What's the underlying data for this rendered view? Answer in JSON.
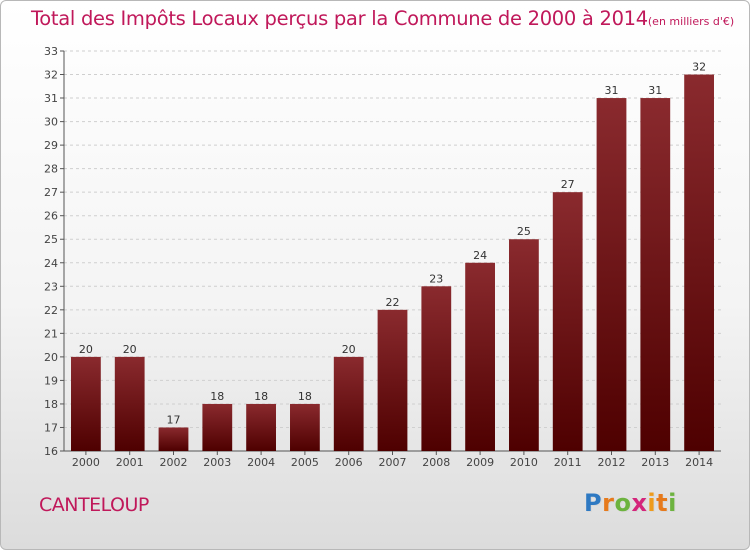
{
  "title": "Total des Impôts Locaux perçus par la Commune de 2000 à 2014",
  "title_unit": "(en milliers d'€)",
  "commune": "CANTELOUP",
  "logo": {
    "text": "Proxiti",
    "colors": [
      "#2e79c2",
      "#e67a1c",
      "#6db33f",
      "#d4257b",
      "#ee9b1c",
      "#e67a1c",
      "#6db33f"
    ]
  },
  "chart_data": {
    "type": "bar",
    "categories": [
      "2000",
      "2001",
      "2002",
      "2003",
      "2004",
      "2005",
      "2006",
      "2007",
      "2008",
      "2009",
      "2010",
      "2011",
      "2012",
      "2013",
      "2014"
    ],
    "values": [
      20,
      20,
      17,
      18,
      18,
      18,
      20,
      22,
      23,
      24,
      25,
      27,
      31,
      31,
      32
    ],
    "ylim": [
      16,
      33
    ],
    "yticks": [
      16,
      17,
      18,
      19,
      20,
      21,
      22,
      23,
      24,
      25,
      26,
      27,
      28,
      29,
      30,
      31,
      32,
      33
    ],
    "grid": true,
    "bar_color_top": "#8a2a2e",
    "bar_color_bottom": "#4e0000"
  }
}
